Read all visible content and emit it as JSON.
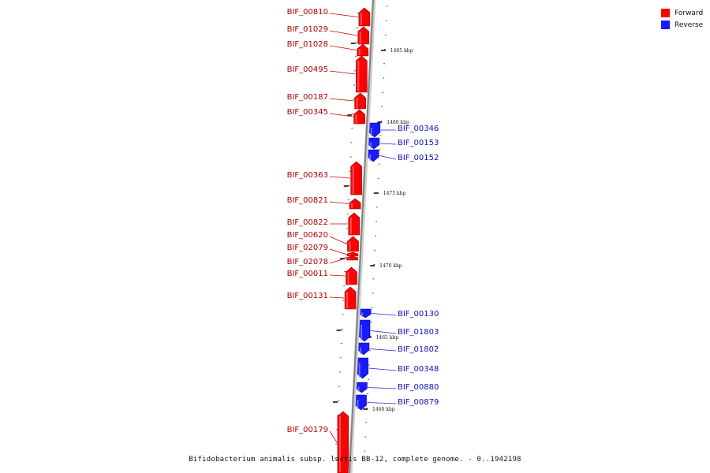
{
  "legend": {
    "forward_label": "Forward",
    "reverse_label": "Reverse",
    "forward_color": "#ff0000",
    "reverse_color": "#1a1aff"
  },
  "caption": "Bifidobacterium animalis subsp. lactis BB-12, complete genome. - 0..1942198",
  "ticks": [
    {
      "label": "1485 kbp"
    },
    {
      "label": "1480 kbp"
    },
    {
      "label": "1475 kbp"
    },
    {
      "label": "1470 kbp"
    },
    {
      "label": "1465 kbp"
    },
    {
      "label": "1460 kbp"
    }
  ],
  "genes": [
    {
      "name": "BIF_00810",
      "strand": "forward"
    },
    {
      "name": "BIF_01029",
      "strand": "forward"
    },
    {
      "name": "BIF_01028",
      "strand": "forward"
    },
    {
      "name": "BIF_00495",
      "strand": "forward"
    },
    {
      "name": "BIF_00187",
      "strand": "forward"
    },
    {
      "name": "BIF_00345",
      "strand": "forward"
    },
    {
      "name": "BIF_00346",
      "strand": "reverse"
    },
    {
      "name": "BIF_00153",
      "strand": "reverse"
    },
    {
      "name": "BIF_00152",
      "strand": "reverse"
    },
    {
      "name": "BIF_00363",
      "strand": "forward"
    },
    {
      "name": "BIF_00821",
      "strand": "forward"
    },
    {
      "name": "BIF_00822",
      "strand": "forward"
    },
    {
      "name": "BIF_00620",
      "strand": "forward"
    },
    {
      "name": "BIF_02079",
      "strand": "forward"
    },
    {
      "name": "BIF_02078",
      "strand": "forward"
    },
    {
      "name": "BIF_00011",
      "strand": "forward"
    },
    {
      "name": "BIF_00131",
      "strand": "forward"
    },
    {
      "name": "BIF_00130",
      "strand": "reverse"
    },
    {
      "name": "BIF_01803",
      "strand": "reverse"
    },
    {
      "name": "BIF_01802",
      "strand": "reverse"
    },
    {
      "name": "BIF_00348",
      "strand": "reverse"
    },
    {
      "name": "BIF_00880",
      "strand": "reverse"
    },
    {
      "name": "BIF_00879",
      "strand": "reverse"
    },
    {
      "name": "BIF_00179",
      "strand": "forward"
    }
  ]
}
